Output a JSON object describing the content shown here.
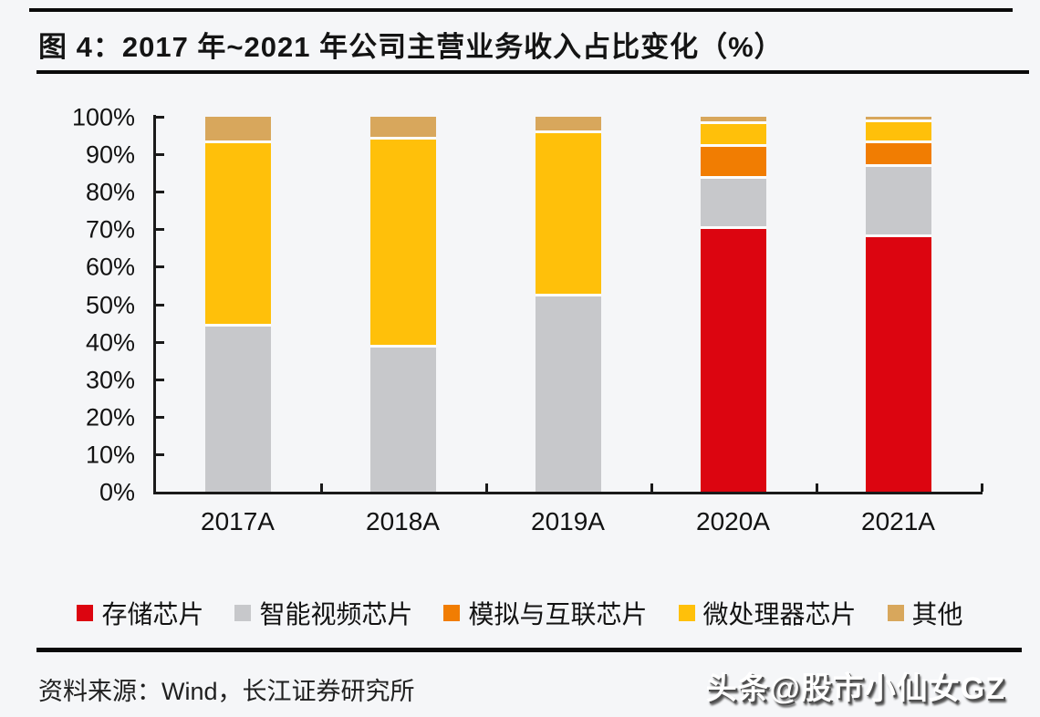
{
  "title": "图 4：2017 年~2021 年公司主营业务收入占比变化（%）",
  "chart_data": {
    "type": "bar",
    "stacked": true,
    "title": "图 4：2017 年~2021 年公司主营业务收入占比变化（%）",
    "categories": [
      "2017A",
      "2018A",
      "2019A",
      "2020A",
      "2021A"
    ],
    "series": [
      {
        "name": "存储芯片",
        "color": "#dc0510",
        "values": [
          0,
          0,
          0,
          70,
          68
        ]
      },
      {
        "name": "智能视频芯片",
        "color": "#c7c8cb",
        "values": [
          44,
          38.5,
          52,
          13.5,
          18.5
        ]
      },
      {
        "name": "模拟与互联芯片",
        "color": "#f17d02",
        "values": [
          0,
          0,
          0,
          8.5,
          6.5
        ]
      },
      {
        "name": "微处理器芯片",
        "color": "#ffc00a",
        "values": [
          49,
          55.5,
          43.5,
          6,
          5.5
        ]
      },
      {
        "name": "其他",
        "color": "#d8a75c",
        "values": [
          7,
          6,
          4.5,
          2,
          1.5
        ]
      }
    ],
    "ylim": [
      0,
      100
    ],
    "ytick_step": 10,
    "y_tick_labels": [
      "0%",
      "10%",
      "20%",
      "30%",
      "40%",
      "50%",
      "60%",
      "70%",
      "80%",
      "90%",
      "100%"
    ],
    "xlabel": "",
    "ylabel": "",
    "grid": false,
    "legend_position": "bottom"
  },
  "footer": {
    "source": "资料来源：Wind，长江证券研究所",
    "watermark": "头条@股市小仙女GZ"
  },
  "colors": {
    "axis": "#1a1a1a",
    "rule": "#0a0a0a",
    "background": "#f5f6f8",
    "segment_separator": "#fcfdfe"
  }
}
